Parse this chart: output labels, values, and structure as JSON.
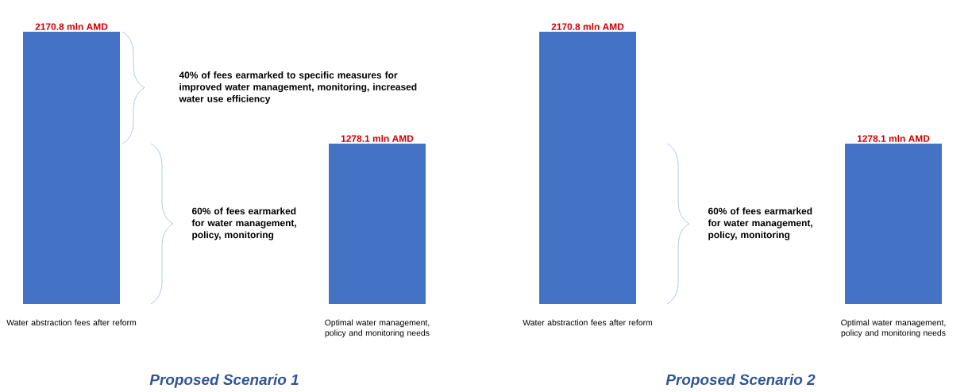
{
  "chart_data": [
    {
      "type": "bar",
      "title": "Proposed Scenario 1",
      "categories": [
        "Water abstraction fees after reform",
        "Optimal water management, policy and monitoring needs"
      ],
      "values": [
        2170.8,
        1278.1
      ],
      "value_labels": [
        "2170.8 mln AMD",
        "1278.1 mln AMD"
      ],
      "color": "#4472c4",
      "annotations": [
        "40% of fees earmarked to specific measures for improved water management, monitoring, increased water use efficiency",
        "60% of fees earmarked for water management, policy, monitoring"
      ]
    },
    {
      "type": "bar",
      "title": "Proposed Scenario 2",
      "categories": [
        "Water abstraction fees after reform",
        "Optimal water management, policy and monitoring needs"
      ],
      "values": [
        2170.8,
        1278.1
      ],
      "value_labels": [
        "2170.8 mln AMD",
        "1278.1 mln AMD"
      ],
      "color": "#4472c4",
      "annotations": [
        "60% of fees earmarked for water management, policy, monitoring"
      ]
    }
  ]
}
